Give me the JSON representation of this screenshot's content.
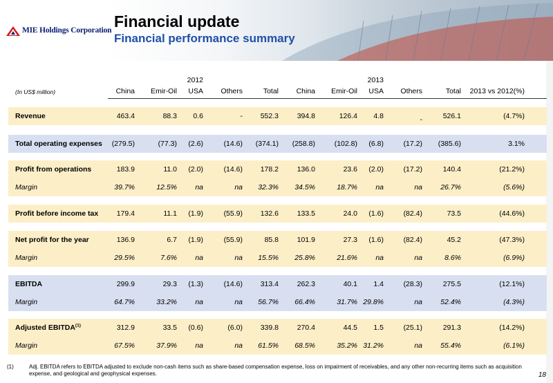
{
  "header": {
    "company": "MIE Holdings Corporation",
    "title": "Financial update",
    "subtitle": "Financial performance summary"
  },
  "table": {
    "unit_note": "(In US$ million)",
    "year_2012": "2012",
    "year_2013": "2013",
    "columns_2012": [
      "China",
      "Emir-Oil",
      "USA",
      "Others",
      "Total"
    ],
    "columns_2013": [
      "China",
      "Emir-Oil",
      "USA",
      "Others",
      "Total"
    ],
    "compare_column": "2013 vs 2012(%)",
    "rows": [
      {
        "label": "Revenue",
        "values": [
          "463.4",
          "88.3",
          "0.6",
          "-",
          "552.3",
          "394.8",
          "126.4",
          "4.8",
          "-",
          "526.1",
          "(4.7%)"
        ]
      },
      {
        "label": "Total operating expenses",
        "values": [
          "(279.5)",
          "(77.3)",
          "(2.6)",
          "(14.6)",
          "(374.1)",
          "(258.8)",
          "(102.8)",
          "(6.8)",
          "(17.2)",
          "(385.6)",
          "3.1%"
        ]
      },
      {
        "label": "Profit from operations",
        "values": [
          "183.9",
          "11.0",
          "(2.0)",
          "(14.6)",
          "178.2",
          "136.0",
          "23.6",
          "(2.0)",
          "(17.2)",
          "140.4",
          "(21.2%)"
        ]
      },
      {
        "label": "Margin",
        "values": [
          "39.7%",
          "12.5%",
          "na",
          "na",
          "32.3%",
          "34.5%",
          "18.7%",
          "na",
          "na",
          "26.7%",
          "(5.6%)"
        ]
      },
      {
        "label": "Profit before income tax",
        "values": [
          "179.4",
          "11.1",
          "(1.9)",
          "(55.9)",
          "132.6",
          "133.5",
          "24.0",
          "(1.6)",
          "(82.4)",
          "73.5",
          "(44.6%)"
        ]
      },
      {
        "label": "Net profit for the year",
        "values": [
          "136.9",
          "6.7",
          "(1.9)",
          "(55.9)",
          "85.8",
          "101.9",
          "27.3",
          "(1.6)",
          "(82.4)",
          "45.2",
          "(47.3%)"
        ]
      },
      {
        "label": "Margin",
        "values": [
          "29.5%",
          "7.6%",
          "na",
          "na",
          "15.5%",
          "25.8%",
          "21.6%",
          "na",
          "na",
          "8.6%",
          "(6.9%)"
        ]
      },
      {
        "label": "EBITDA",
        "values": [
          "299.9",
          "29.3",
          "(1.3)",
          "(14.6)",
          "313.4",
          "262.3",
          "40.1",
          "1.4",
          "(28.3)",
          "275.5",
          "(12.1%)"
        ]
      },
      {
        "label": "Margin",
        "values": [
          "64.7%",
          "33.2%",
          "na",
          "na",
          "56.7%",
          "66.4%",
          "31.7%",
          "29.8%",
          "na",
          "52.4%",
          "(4.3%)"
        ]
      },
      {
        "label": "Adjusted EBITDA",
        "label_sup": "(1)",
        "values": [
          "312.9",
          "33.5",
          "(0.6)",
          "(6.0)",
          "339.8",
          "270.4",
          "44.5",
          "1.5",
          "(25.1)",
          "291.3",
          "(14.2%)"
        ]
      },
      {
        "label": "Margin",
        "values": [
          "67.5%",
          "37.9%",
          "na",
          "na",
          "61.5%",
          "68.5%",
          "35.2%",
          "31.2%",
          "na",
          "55.4%",
          "(6.1%)"
        ]
      }
    ]
  },
  "footnote": {
    "mark": "(1)",
    "text": "Adj. EBITDA refers to EBITDA adjusted to exclude non-cash items such as share-based compensation expense, loss on impairment of receivables, and any other non-recurring items such as acquisition expense, and geological and geophysical expenses."
  },
  "page_number": "18",
  "colors": {
    "title_blue": "#1f50a8",
    "band_yellow": "#fcefc8",
    "band_blue": "#d8dff0",
    "logo_red": "#d21a1a"
  }
}
